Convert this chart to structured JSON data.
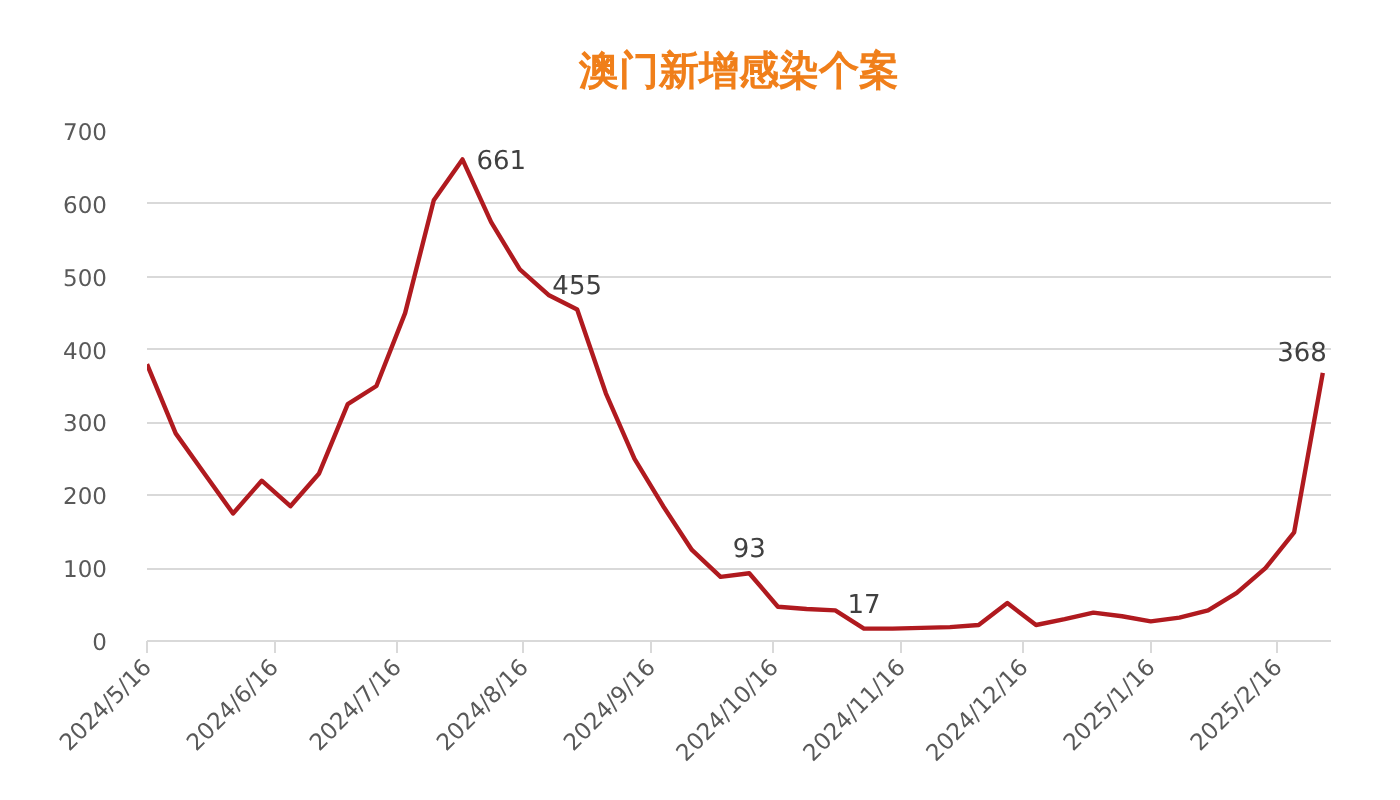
{
  "chart_data": {
    "type": "line",
    "title": "澳门新增感染个案",
    "x": [
      "2024-05-16",
      "2024-05-23",
      "2024-05-30",
      "2024-06-06",
      "2024-06-13",
      "2024-06-20",
      "2024-06-27",
      "2024-07-04",
      "2024-07-11",
      "2024-07-18",
      "2024-07-25",
      "2024-08-01",
      "2024-08-08",
      "2024-08-15",
      "2024-08-22",
      "2024-08-29",
      "2024-09-05",
      "2024-09-12",
      "2024-09-19",
      "2024-09-26",
      "2024-10-03",
      "2024-10-10",
      "2024-10-17",
      "2024-10-24",
      "2024-10-31",
      "2024-11-07",
      "2024-11-14",
      "2024-11-21",
      "2024-11-28",
      "2024-12-05",
      "2024-12-12",
      "2024-12-19",
      "2024-12-26",
      "2025-01-02",
      "2025-01-09",
      "2025-01-16",
      "2025-01-23",
      "2025-01-30",
      "2025-02-06",
      "2025-02-13",
      "2025-02-20",
      "2025-02-27"
    ],
    "values": [
      380,
      285,
      230,
      175,
      220,
      185,
      230,
      325,
      350,
      450,
      605,
      661,
      575,
      510,
      475,
      455,
      340,
      250,
      185,
      125,
      88,
      93,
      47,
      44,
      42,
      17,
      17,
      18,
      19,
      22,
      52,
      22,
      30,
      39,
      34,
      27,
      32,
      42,
      66,
      100,
      149,
      368
    ],
    "value_labels": [
      null,
      null,
      null,
      null,
      null,
      null,
      null,
      null,
      null,
      null,
      null,
      "661",
      null,
      null,
      null,
      "455",
      null,
      null,
      null,
      null,
      null,
      "93",
      null,
      null,
      null,
      "17",
      null,
      null,
      null,
      null,
      null,
      null,
      null,
      null,
      null,
      null,
      null,
      null,
      null,
      null,
      null,
      "368"
    ],
    "color": "#b01a1f",
    "xlim": [
      "2024-05-16",
      "2025-03-01"
    ],
    "xticks": [
      {
        "value": "2024-05-16",
        "label": "2024/5/16"
      },
      {
        "value": "2024-06-16",
        "label": "2024/6/16"
      },
      {
        "value": "2024-07-16",
        "label": "2024/7/16"
      },
      {
        "value": "2024-08-16",
        "label": "2024/8/16"
      },
      {
        "value": "2024-09-16",
        "label": "2024/9/16"
      },
      {
        "value": "2024-10-16",
        "label": "2024/10/16"
      },
      {
        "value": "2024-11-16",
        "label": "2024/11/16"
      },
      {
        "value": "2024-12-16",
        "label": "2024/12/16"
      },
      {
        "value": "2025-01-16",
        "label": "2025/1/16"
      },
      {
        "value": "2025-02-16",
        "label": "2025/2/16"
      }
    ],
    "ylim": [
      0,
      700
    ],
    "yticks": [
      0,
      100,
      200,
      300,
      400,
      500,
      600,
      700
    ],
    "grid": "y"
  }
}
